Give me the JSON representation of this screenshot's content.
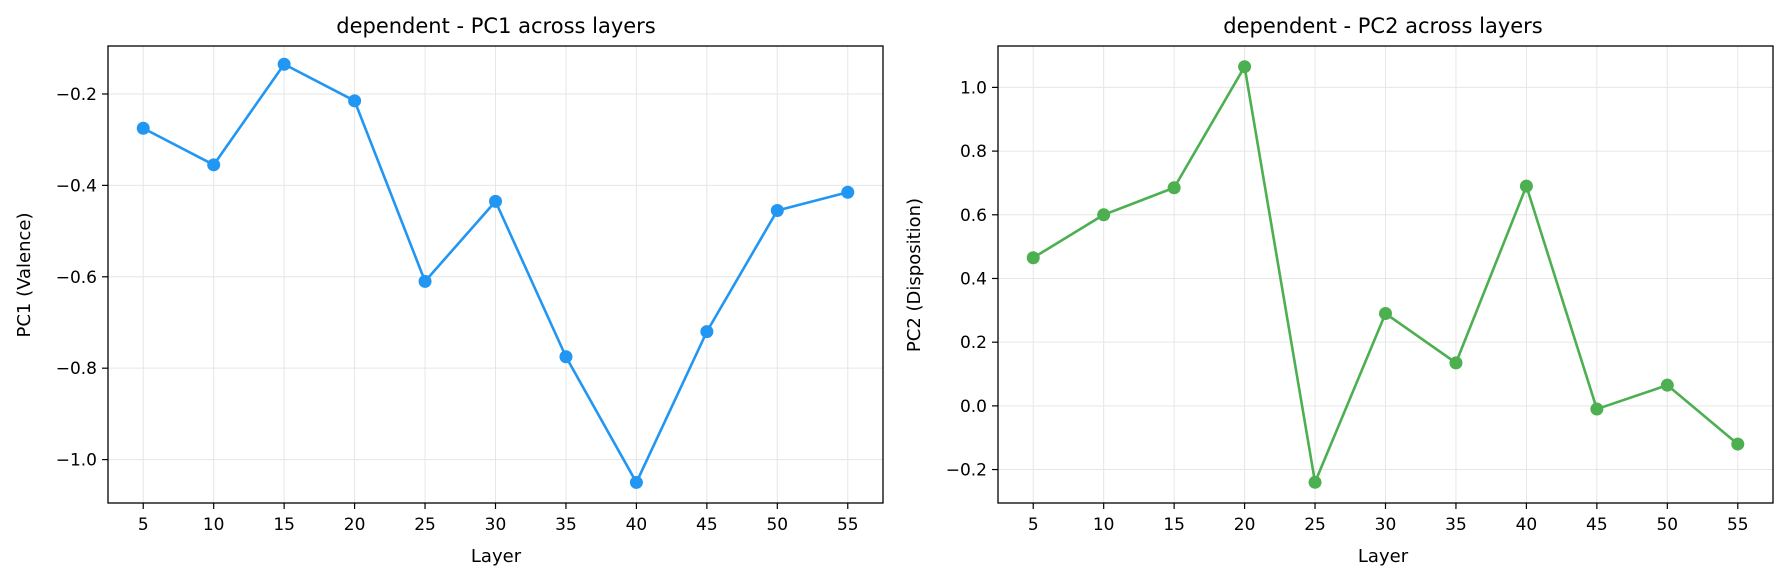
{
  "chart_data": [
    {
      "type": "line",
      "title": "dependent - PC1 across layers",
      "xlabel": "Layer",
      "ylabel": "PC1 (Valence)",
      "color": "#2196f3",
      "x": [
        5,
        10,
        15,
        20,
        25,
        30,
        35,
        40,
        45,
        50,
        55
      ],
      "values": [
        -0.275,
        -0.355,
        -0.135,
        -0.215,
        -0.61,
        -0.435,
        -0.775,
        -1.05,
        -0.72,
        -0.455,
        -0.415
      ],
      "xlim": [
        2.5,
        57.5
      ],
      "ylim": [
        -1.095,
        -0.095
      ],
      "xticks": [
        5,
        10,
        15,
        20,
        25,
        30,
        35,
        40,
        45,
        50,
        55
      ],
      "yticks": [
        -1.0,
        -0.8,
        -0.6,
        -0.4,
        -0.2
      ],
      "ytick_labels": [
        "−1.0",
        "−0.8",
        "−0.6",
        "−0.4",
        "−0.2"
      ],
      "grid": true
    },
    {
      "type": "line",
      "title": "dependent - PC2 across layers",
      "xlabel": "Layer",
      "ylabel": "PC2 (Disposition)",
      "color": "#4caf50",
      "x": [
        5,
        10,
        15,
        20,
        25,
        30,
        35,
        40,
        45,
        50,
        55
      ],
      "values": [
        0.465,
        0.6,
        0.685,
        1.065,
        -0.24,
        0.29,
        0.135,
        0.69,
        -0.01,
        0.065,
        -0.12
      ],
      "xlim": [
        2.5,
        57.5
      ],
      "ylim": [
        -0.305,
        1.13
      ],
      "xticks": [
        5,
        10,
        15,
        20,
        25,
        30,
        35,
        40,
        45,
        50,
        55
      ],
      "yticks": [
        -0.2,
        0.0,
        0.2,
        0.4,
        0.6,
        0.8,
        1.0
      ],
      "ytick_labels": [
        "−0.2",
        "0.0",
        "0.2",
        "0.4",
        "0.6",
        "0.8",
        "1.0"
      ],
      "grid": true
    }
  ]
}
